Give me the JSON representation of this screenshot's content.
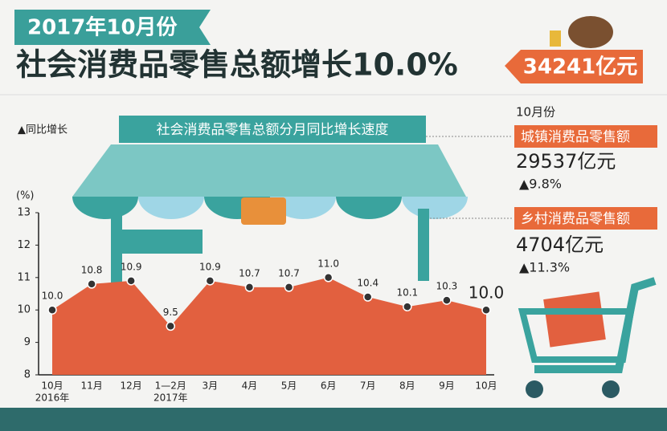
{
  "header": {
    "date": "2017年10月份",
    "title": "社会消费品零售总额增长10.0%",
    "total": "34241亿元"
  },
  "chart_data": {
    "type": "area",
    "title": "社会消费品零售总额分月同比增长速度",
    "legend": "▲同比增长",
    "y_unit": "(%)",
    "categories": [
      "10月",
      "11月",
      "12月",
      "1—2月",
      "3月",
      "4月",
      "5月",
      "6月",
      "7月",
      "8月",
      "9月",
      "10月"
    ],
    "category_years": [
      "2016年",
      null,
      null,
      "2017年",
      null,
      null,
      null,
      null,
      null,
      null,
      null,
      null
    ],
    "values": [
      10.0,
      10.8,
      10.9,
      9.5,
      10.9,
      10.7,
      10.7,
      11.0,
      10.4,
      10.1,
      10.3,
      10.0
    ],
    "value_labels": [
      "10.0",
      "10.8",
      "10.9",
      "9.5",
      "10.9",
      "10.7",
      "10.7",
      "11.0",
      "10.4",
      "10.1",
      "10.3",
      "10.0"
    ],
    "color": "#e2603f",
    "ylim": [
      8,
      13
    ],
    "yticks": [
      8,
      9,
      10,
      11,
      12,
      13
    ]
  },
  "side": {
    "month": "10月份",
    "urban_label": "城镇消费品零售额",
    "urban_value": "29537亿元",
    "urban_growth": "▲9.8%",
    "rural_label": "乡村消费品零售额",
    "rural_value": "4704亿元",
    "rural_growth": "▲11.3%"
  }
}
